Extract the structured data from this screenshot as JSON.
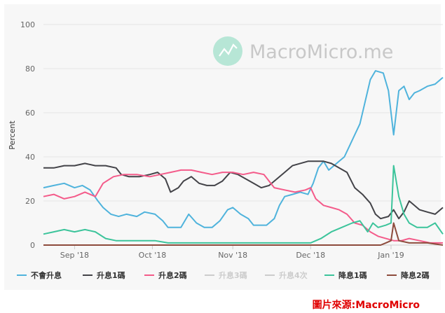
{
  "chart_data": {
    "type": "line",
    "ylabel": "Percent",
    "ylim": [
      0,
      100
    ],
    "yticks": [
      "0",
      "20",
      "40",
      "60",
      "80",
      "100"
    ],
    "x_start": "2018-08-20",
    "x_end": "2019-01-21",
    "xticks": [
      {
        "label": "Sep '18",
        "date": "2018-09-01"
      },
      {
        "label": "Oct '18",
        "date": "2018-10-01"
      },
      {
        "label": "Nov '18",
        "date": "2018-11-01"
      },
      {
        "label": "Dec '18",
        "date": "2018-12-01"
      },
      {
        "label": "Jan '19",
        "date": "2019-01-01"
      }
    ],
    "watermark": "MacroMicro.me",
    "source": "圖片來源:MacroMicro",
    "grid": true,
    "legend_position": "bottom",
    "series": [
      {
        "name": "不會升息",
        "color": "#4fb3dc",
        "visible": true,
        "points": [
          [
            "2018-08-20",
            26
          ],
          [
            "2018-08-24",
            27
          ],
          [
            "2018-08-28",
            28
          ],
          [
            "2018-09-01",
            26
          ],
          [
            "2018-09-04",
            27
          ],
          [
            "2018-09-07",
            25
          ],
          [
            "2018-09-10",
            20
          ],
          [
            "2018-09-12",
            17
          ],
          [
            "2018-09-15",
            14
          ],
          [
            "2018-09-18",
            13
          ],
          [
            "2018-09-21",
            14
          ],
          [
            "2018-09-25",
            13
          ],
          [
            "2018-09-28",
            15
          ],
          [
            "2018-10-02",
            14
          ],
          [
            "2018-10-05",
            11
          ],
          [
            "2018-10-07",
            8
          ],
          [
            "2018-10-12",
            8
          ],
          [
            "2018-10-15",
            14
          ],
          [
            "2018-10-18",
            10
          ],
          [
            "2018-10-21",
            8
          ],
          [
            "2018-10-24",
            8
          ],
          [
            "2018-10-27",
            11
          ],
          [
            "2018-10-30",
            16
          ],
          [
            "2018-11-01",
            17
          ],
          [
            "2018-11-04",
            14
          ],
          [
            "2018-11-07",
            12
          ],
          [
            "2018-11-09",
            9
          ],
          [
            "2018-11-14",
            9
          ],
          [
            "2018-11-17",
            12
          ],
          [
            "2018-11-19",
            18
          ],
          [
            "2018-11-21",
            22
          ],
          [
            "2018-11-24",
            23
          ],
          [
            "2018-11-27",
            24
          ],
          [
            "2018-11-30",
            23
          ],
          [
            "2018-12-02",
            28
          ],
          [
            "2018-12-04",
            35
          ],
          [
            "2018-12-06",
            38
          ],
          [
            "2018-12-08",
            34
          ],
          [
            "2018-12-10",
            36
          ],
          [
            "2018-12-12",
            38
          ],
          [
            "2018-12-14",
            40
          ],
          [
            "2018-12-16",
            45
          ],
          [
            "2018-12-18",
            50
          ],
          [
            "2018-12-20",
            55
          ],
          [
            "2018-12-22",
            65
          ],
          [
            "2018-12-24",
            75
          ],
          [
            "2018-12-26",
            79
          ],
          [
            "2018-12-29",
            78
          ],
          [
            "2018-12-31",
            70
          ],
          [
            "2019-01-02",
            50
          ],
          [
            "2019-01-04",
            70
          ],
          [
            "2019-01-06",
            72
          ],
          [
            "2019-01-08",
            66
          ],
          [
            "2019-01-10",
            69
          ],
          [
            "2019-01-12",
            70
          ],
          [
            "2019-01-15",
            72
          ],
          [
            "2019-01-18",
            73
          ],
          [
            "2019-01-21",
            76
          ]
        ]
      },
      {
        "name": "升息1碼",
        "color": "#434348",
        "visible": true,
        "points": [
          [
            "2018-08-20",
            35
          ],
          [
            "2018-08-24",
            35
          ],
          [
            "2018-08-28",
            36
          ],
          [
            "2018-09-01",
            36
          ],
          [
            "2018-09-05",
            37
          ],
          [
            "2018-09-09",
            36
          ],
          [
            "2018-09-13",
            36
          ],
          [
            "2018-09-17",
            35
          ],
          [
            "2018-09-19",
            32
          ],
          [
            "2018-09-22",
            31
          ],
          [
            "2018-09-26",
            31
          ],
          [
            "2018-09-30",
            32
          ],
          [
            "2018-10-03",
            33
          ],
          [
            "2018-10-06",
            30
          ],
          [
            "2018-10-08",
            24
          ],
          [
            "2018-10-11",
            26
          ],
          [
            "2018-10-13",
            29
          ],
          [
            "2018-10-16",
            31
          ],
          [
            "2018-10-19",
            28
          ],
          [
            "2018-10-22",
            27
          ],
          [
            "2018-10-25",
            27
          ],
          [
            "2018-10-28",
            29
          ],
          [
            "2018-10-31",
            33
          ],
          [
            "2018-11-03",
            32
          ],
          [
            "2018-11-06",
            30
          ],
          [
            "2018-11-09",
            28
          ],
          [
            "2018-11-12",
            26
          ],
          [
            "2018-11-15",
            27
          ],
          [
            "2018-11-18",
            30
          ],
          [
            "2018-11-21",
            33
          ],
          [
            "2018-11-24",
            36
          ],
          [
            "2018-11-27",
            37
          ],
          [
            "2018-11-30",
            38
          ],
          [
            "2018-12-03",
            38
          ],
          [
            "2018-12-06",
            38
          ],
          [
            "2018-12-09",
            37
          ],
          [
            "2018-12-12",
            35
          ],
          [
            "2018-12-15",
            33
          ],
          [
            "2018-12-18",
            26
          ],
          [
            "2018-12-21",
            23
          ],
          [
            "2018-12-24",
            19
          ],
          [
            "2018-12-26",
            14
          ],
          [
            "2018-12-28",
            12
          ],
          [
            "2018-12-31",
            13
          ],
          [
            "2019-01-02",
            16
          ],
          [
            "2019-01-04",
            12
          ],
          [
            "2019-01-06",
            15
          ],
          [
            "2019-01-08",
            20
          ],
          [
            "2019-01-10",
            18
          ],
          [
            "2019-01-12",
            16
          ],
          [
            "2019-01-15",
            15
          ],
          [
            "2019-01-18",
            14
          ],
          [
            "2019-01-21",
            17
          ]
        ]
      },
      {
        "name": "升息2碼",
        "color": "#f45b8a",
        "visible": true,
        "points": [
          [
            "2018-08-20",
            22
          ],
          [
            "2018-08-24",
            23
          ],
          [
            "2018-08-28",
            21
          ],
          [
            "2018-09-01",
            22
          ],
          [
            "2018-09-05",
            24
          ],
          [
            "2018-09-09",
            22
          ],
          [
            "2018-09-12",
            28
          ],
          [
            "2018-09-16",
            31
          ],
          [
            "2018-09-20",
            32
          ],
          [
            "2018-09-25",
            32
          ],
          [
            "2018-09-30",
            31
          ],
          [
            "2018-10-04",
            32
          ],
          [
            "2018-10-08",
            33
          ],
          [
            "2018-10-12",
            34
          ],
          [
            "2018-10-16",
            34
          ],
          [
            "2018-10-20",
            33
          ],
          [
            "2018-10-24",
            32
          ],
          [
            "2018-10-28",
            33
          ],
          [
            "2018-11-01",
            33
          ],
          [
            "2018-11-05",
            32
          ],
          [
            "2018-11-09",
            33
          ],
          [
            "2018-11-13",
            32
          ],
          [
            "2018-11-17",
            26
          ],
          [
            "2018-11-21",
            25
          ],
          [
            "2018-11-25",
            24
          ],
          [
            "2018-11-29",
            25
          ],
          [
            "2018-12-01",
            26
          ],
          [
            "2018-12-03",
            21
          ],
          [
            "2018-12-06",
            18
          ],
          [
            "2018-12-09",
            17
          ],
          [
            "2018-12-12",
            16
          ],
          [
            "2018-12-15",
            14
          ],
          [
            "2018-12-18",
            10
          ],
          [
            "2018-12-21",
            9
          ],
          [
            "2018-12-24",
            6
          ],
          [
            "2018-12-27",
            4
          ],
          [
            "2018-12-30",
            3
          ],
          [
            "2019-01-02",
            2
          ],
          [
            "2019-01-05",
            2
          ],
          [
            "2019-01-08",
            3
          ],
          [
            "2019-01-12",
            2
          ],
          [
            "2019-01-16",
            1
          ],
          [
            "2019-01-21",
            1
          ]
        ]
      },
      {
        "name": "升息3碼",
        "color": "#cccccc",
        "visible": false,
        "points": []
      },
      {
        "name": "升息4次",
        "color": "#cccccc",
        "visible": false,
        "points": []
      },
      {
        "name": "降息1碼",
        "color": "#3cc49b",
        "visible": true,
        "points": [
          [
            "2018-08-20",
            5
          ],
          [
            "2018-08-24",
            6
          ],
          [
            "2018-08-28",
            7
          ],
          [
            "2018-09-01",
            6
          ],
          [
            "2018-09-05",
            7
          ],
          [
            "2018-09-09",
            6
          ],
          [
            "2018-09-13",
            3
          ],
          [
            "2018-09-17",
            2
          ],
          [
            "2018-09-22",
            2
          ],
          [
            "2018-09-27",
            2
          ],
          [
            "2018-10-02",
            2
          ],
          [
            "2018-10-07",
            1
          ],
          [
            "2018-10-12",
            1
          ],
          [
            "2018-10-17",
            1
          ],
          [
            "2018-10-22",
            1
          ],
          [
            "2018-10-27",
            1
          ],
          [
            "2018-11-01",
            1
          ],
          [
            "2018-11-06",
            1
          ],
          [
            "2018-11-11",
            1
          ],
          [
            "2018-11-16",
            1
          ],
          [
            "2018-11-21",
            1
          ],
          [
            "2018-11-26",
            1
          ],
          [
            "2018-12-01",
            1
          ],
          [
            "2018-12-05",
            3
          ],
          [
            "2018-12-09",
            6
          ],
          [
            "2018-12-13",
            8
          ],
          [
            "2018-12-17",
            10
          ],
          [
            "2018-12-20",
            11
          ],
          [
            "2018-12-23",
            6
          ],
          [
            "2018-12-25",
            10
          ],
          [
            "2018-12-27",
            8
          ],
          [
            "2018-12-30",
            9
          ],
          [
            "2019-01-01",
            10
          ],
          [
            "2019-01-02",
            36
          ],
          [
            "2019-01-04",
            22
          ],
          [
            "2019-01-06",
            14
          ],
          [
            "2019-01-08",
            10
          ],
          [
            "2019-01-11",
            8
          ],
          [
            "2019-01-15",
            8
          ],
          [
            "2019-01-18",
            10
          ],
          [
            "2019-01-21",
            5
          ]
        ]
      },
      {
        "name": "降息2碼",
        "color": "#8d4b3c",
        "visible": true,
        "points": [
          [
            "2018-08-20",
            0
          ],
          [
            "2018-09-15",
            0
          ],
          [
            "2018-10-15",
            0
          ],
          [
            "2018-11-15",
            0
          ],
          [
            "2018-12-20",
            0
          ],
          [
            "2018-12-28",
            0
          ],
          [
            "2018-12-30",
            1
          ],
          [
            "2019-01-01",
            2
          ],
          [
            "2019-01-02",
            10
          ],
          [
            "2019-01-04",
            2
          ],
          [
            "2019-01-08",
            1
          ],
          [
            "2019-01-15",
            1
          ],
          [
            "2019-01-21",
            0
          ]
        ]
      }
    ]
  }
}
